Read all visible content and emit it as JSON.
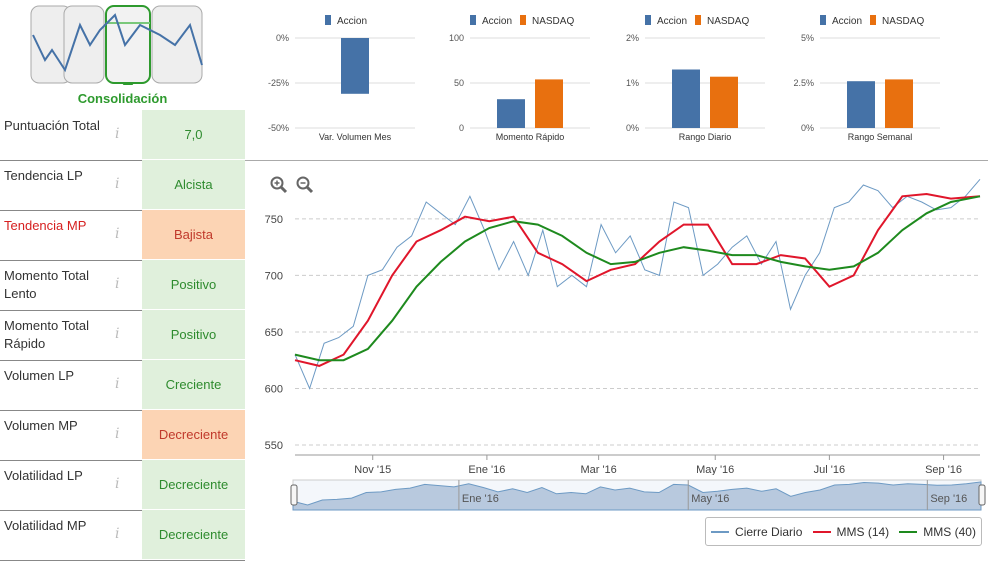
{
  "pattern": {
    "label": "Consolidación"
  },
  "rows": [
    {
      "label": "Puntuación Total",
      "value": "7,0",
      "style": "green"
    },
    {
      "label": "Tendencia LP",
      "value": "Alcista",
      "style": "green"
    },
    {
      "label": "Tendencia MP",
      "value": "Bajista",
      "style": "orange",
      "highlight": true
    },
    {
      "label": "Momento Total Lento",
      "value": "Positivo",
      "style": "green"
    },
    {
      "label": "Momento Total Rápido",
      "value": "Positivo",
      "style": "green"
    },
    {
      "label": "Volumen LP",
      "value": "Creciente",
      "style": "green"
    },
    {
      "label": "Volumen MP",
      "value": "Decreciente",
      "style": "orange"
    },
    {
      "label": "Volatilidad LP",
      "value": "Decreciente",
      "style": "green"
    },
    {
      "label": "Volatilidad MP",
      "value": "Decreciente",
      "style": "green"
    }
  ],
  "info_glyph": "i",
  "colors": {
    "accion": "#4572a7",
    "nasdaq": "#e8700f",
    "close": "#6d9ac4",
    "mms14": "#e0162b",
    "mms40": "#1e8a1e",
    "green_bg": "#e0f0dc",
    "orange_bg": "#fcd4b4"
  },
  "legend_names": {
    "accion": "Accion",
    "nasdaq": "NASDAQ"
  },
  "chart_data": [
    {
      "type": "bar",
      "title": "Var. Volumen Mes",
      "categories": [
        "Var. Volumen Mes"
      ],
      "series": [
        {
          "name": "Accion",
          "values": [
            -31
          ]
        }
      ],
      "ylim": [
        -50,
        0
      ],
      "ticks": [
        "0%",
        "-25%",
        "-50%"
      ],
      "tick_values": [
        0,
        -25,
        -50
      ]
    },
    {
      "type": "bar",
      "title": "Momento Rápido",
      "categories": [
        "Momento Rápido"
      ],
      "series": [
        {
          "name": "Accion",
          "values": [
            32
          ]
        },
        {
          "name": "NASDAQ",
          "values": [
            54
          ]
        }
      ],
      "ylim": [
        0,
        100
      ],
      "ticks": [
        "100",
        "50",
        "0"
      ],
      "tick_values": [
        100,
        50,
        0
      ]
    },
    {
      "type": "bar",
      "title": "Rango Diario",
      "categories": [
        "Rango Diario"
      ],
      "series": [
        {
          "name": "Accion",
          "values": [
            1.3
          ]
        },
        {
          "name": "NASDAQ",
          "values": [
            1.14
          ]
        }
      ],
      "ylim": [
        0,
        2
      ],
      "ticks": [
        "2%",
        "1%",
        "0%"
      ],
      "tick_values": [
        2,
        1,
        0
      ]
    },
    {
      "type": "bar",
      "title": "Rango Semanal",
      "categories": [
        "Rango Semanal"
      ],
      "series": [
        {
          "name": "Accion",
          "values": [
            2.6
          ]
        },
        {
          "name": "NASDAQ",
          "values": [
            2.7
          ]
        }
      ],
      "ylim": [
        0,
        5
      ],
      "ticks": [
        "5%",
        "2.5%",
        "0%"
      ],
      "tick_values": [
        5,
        2.5,
        0
      ]
    },
    {
      "type": "line",
      "ylim": [
        550,
        780
      ],
      "y_ticks": [
        550,
        600,
        650,
        700,
        750
      ],
      "x_ticks": [
        "Nov '15",
        "Ene '16",
        "Mar '16",
        "May '16",
        "Jul '16",
        "Sep '16"
      ],
      "x_tick_pos": [
        0.16,
        0.395,
        0.625,
        0.865,
        1.1,
        1.335
      ],
      "series": [
        {
          "name": "Cierre Diario",
          "x": [
            0,
            0.03,
            0.06,
            0.09,
            0.12,
            0.15,
            0.18,
            0.21,
            0.24,
            0.27,
            0.3,
            0.33,
            0.36,
            0.39,
            0.42,
            0.45,
            0.48,
            0.51,
            0.54,
            0.57,
            0.6,
            0.63,
            0.66,
            0.69,
            0.72,
            0.75,
            0.78,
            0.81,
            0.84,
            0.87,
            0.9,
            0.93,
            0.96,
            0.99,
            1.02,
            1.05,
            1.08,
            1.11,
            1.14,
            1.17,
            1.2,
            1.23,
            1.26,
            1.29,
            1.32,
            1.35,
            1.38,
            1.41
          ],
          "values": [
            630,
            600,
            640,
            645,
            655,
            700,
            705,
            725,
            735,
            765,
            755,
            745,
            770,
            740,
            705,
            730,
            700,
            740,
            690,
            700,
            690,
            745,
            720,
            735,
            705,
            700,
            765,
            760,
            700,
            710,
            725,
            735,
            710,
            730,
            670,
            700,
            720,
            760,
            765,
            780,
            775,
            760,
            770,
            765,
            758,
            760,
            770,
            785
          ]
        },
        {
          "name": "MMS (14)",
          "x": [
            0,
            0.05,
            0.1,
            0.15,
            0.2,
            0.25,
            0.3,
            0.35,
            0.4,
            0.45,
            0.5,
            0.55,
            0.6,
            0.65,
            0.7,
            0.75,
            0.8,
            0.85,
            0.9,
            0.95,
            1.0,
            1.05,
            1.1,
            1.15,
            1.2,
            1.25,
            1.3,
            1.35,
            1.41
          ],
          "values": [
            625,
            620,
            630,
            660,
            700,
            730,
            740,
            752,
            748,
            752,
            720,
            710,
            695,
            705,
            710,
            730,
            745,
            745,
            710,
            710,
            718,
            715,
            690,
            700,
            740,
            770,
            772,
            768,
            770
          ]
        },
        {
          "name": "MMS (40)",
          "x": [
            0,
            0.05,
            0.1,
            0.15,
            0.2,
            0.25,
            0.3,
            0.35,
            0.4,
            0.45,
            0.5,
            0.55,
            0.6,
            0.65,
            0.7,
            0.75,
            0.8,
            0.85,
            0.9,
            0.95,
            1.0,
            1.05,
            1.1,
            1.15,
            1.2,
            1.25,
            1.3,
            1.35,
            1.41
          ],
          "values": [
            630,
            625,
            625,
            635,
            660,
            690,
            712,
            730,
            742,
            748,
            745,
            735,
            720,
            710,
            712,
            720,
            725,
            722,
            718,
            718,
            712,
            708,
            705,
            708,
            720,
            740,
            755,
            765,
            770
          ]
        }
      ]
    }
  ],
  "navigator": {
    "labels": [
      "Ene '16",
      "May '16",
      "Sep '16"
    ]
  },
  "legend": {
    "close": "Cierre Diario",
    "mms14": "MMS (14)",
    "mms40": "MMS (40)"
  }
}
